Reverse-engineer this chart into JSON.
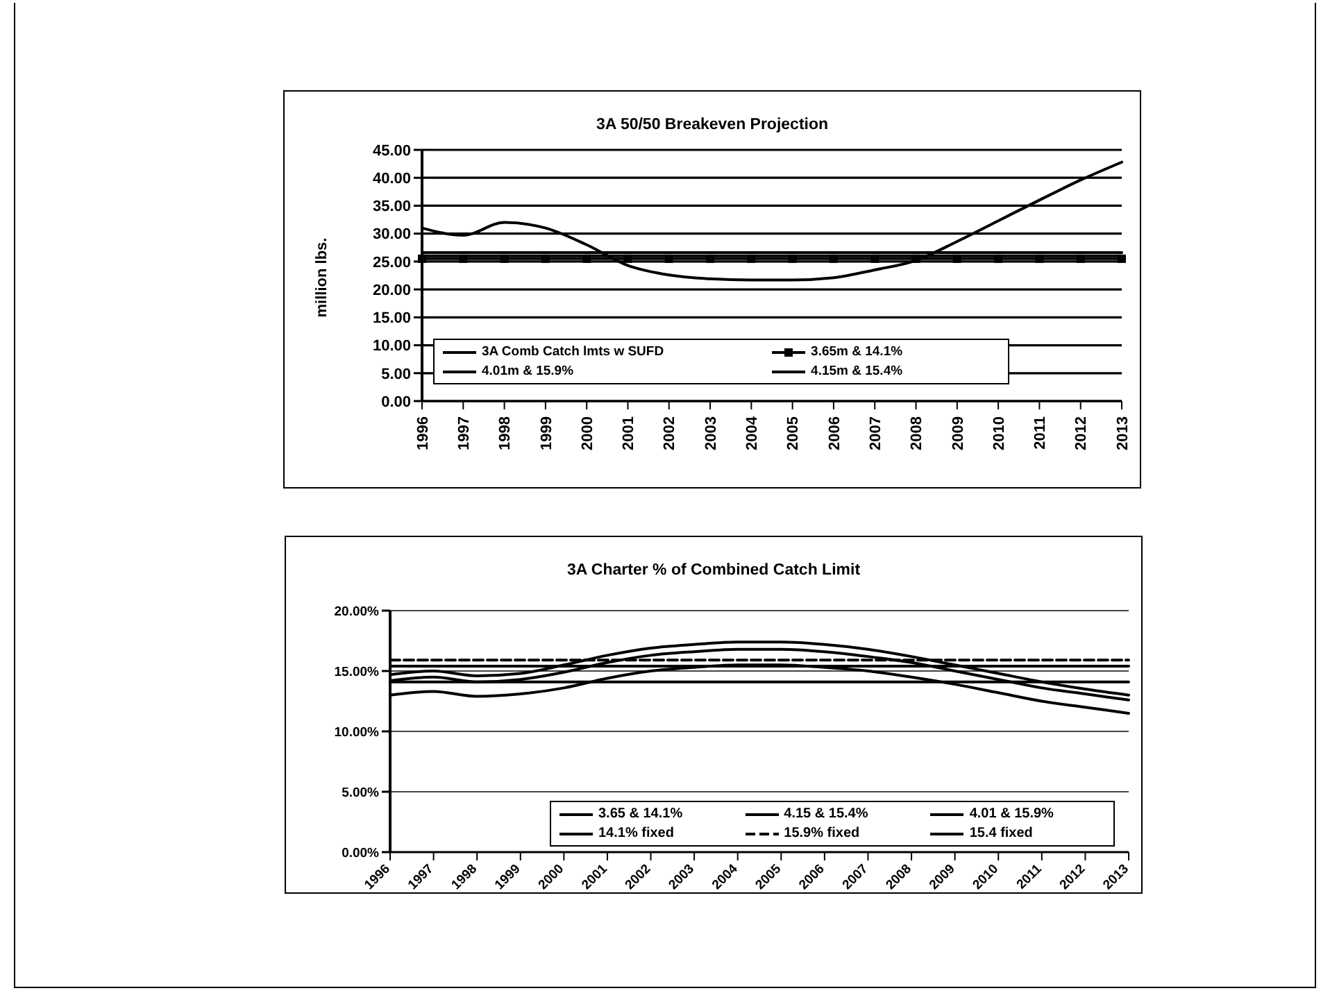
{
  "chart_data": [
    {
      "type": "line",
      "title": "3A 50/50 Breakeven Projection",
      "ylabel": "million lbs.",
      "categories": [
        "1996",
        "1997",
        "1998",
        "1999",
        "2000",
        "2001",
        "2002",
        "2003",
        "2004",
        "2005",
        "2006",
        "2007",
        "2008",
        "2009",
        "2010",
        "2011",
        "2012",
        "2013"
      ],
      "series": [
        {
          "name": "3A Comb Catch lmts w SUFD",
          "color": "#000000",
          "values": [
            31,
            29.7,
            32,
            31,
            28,
            24.3,
            22.6,
            21.9,
            21.7,
            21.7,
            22.1,
            23.5,
            25.2,
            28.6,
            32.3,
            36,
            39.6,
            42.8
          ]
        },
        {
          "name": "3.65m & 14.1%",
          "color": "#000000",
          "marker": "square",
          "values": [
            25.5,
            25.5,
            25.5,
            25.5,
            25.5,
            25.5,
            25.5,
            25.5,
            25.5,
            25.5,
            25.5,
            25.5,
            25.5,
            25.5,
            25.5,
            25.5,
            25.5,
            25.5
          ]
        },
        {
          "name": "4.01m & 15.9%",
          "color": "#000000",
          "values": [
            26,
            26,
            26,
            26,
            26,
            26,
            26,
            26,
            26,
            26,
            26,
            26,
            26,
            26,
            26,
            26,
            26,
            26
          ]
        },
        {
          "name": "4.15m & 15.4%",
          "color": "#000000",
          "values": [
            26.6,
            26.6,
            26.6,
            26.6,
            26.6,
            26.6,
            26.6,
            26.6,
            26.6,
            26.6,
            26.6,
            26.6,
            26.6,
            26.6,
            26.6,
            26.6,
            26.6,
            26.6
          ]
        }
      ],
      "ylim": [
        0,
        45
      ],
      "yticks": [
        {
          "value": 0,
          "label": "0.00"
        },
        {
          "value": 5,
          "label": "5.00"
        },
        {
          "value": 10,
          "label": "10.00"
        },
        {
          "value": 15,
          "label": "15.00"
        },
        {
          "value": 20,
          "label": "20.00"
        },
        {
          "value": 25,
          "label": "25.00"
        },
        {
          "value": 30,
          "label": "30.00"
        },
        {
          "value": 35,
          "label": "35.00"
        },
        {
          "value": 40,
          "label": "40.00"
        },
        {
          "value": 45,
          "label": "45.00"
        }
      ],
      "grid": "y",
      "legend": "bottom left"
    },
    {
      "type": "line",
      "title": "3A Charter % of Combined Catch Limit",
      "categories": [
        "1996",
        "1997",
        "1998",
        "1999",
        "2000",
        "2001",
        "2002",
        "2003",
        "2004",
        "2005",
        "2006",
        "2007",
        "2008",
        "2009",
        "2010",
        "2011",
        "2012",
        "2013"
      ],
      "series": [
        {
          "name": "3.65 & 14.1%",
          "color": "#000000",
          "values": [
            13,
            13.3,
            12.9,
            13.1,
            13.6,
            14.4,
            15,
            15.3,
            15.5,
            15.5,
            15.3,
            15,
            14.5,
            13.9,
            13.2,
            12.5,
            12,
            11.5
          ]
        },
        {
          "name": "4.15 & 15.4%",
          "color": "#000000",
          "values": [
            14.2,
            14.5,
            14.1,
            14.3,
            14.9,
            15.7,
            16.3,
            16.6,
            16.8,
            16.8,
            16.6,
            16.2,
            15.7,
            15,
            14.3,
            13.6,
            13.1,
            12.6
          ]
        },
        {
          "name": "4.01 & 15.9%",
          "color": "#000000",
          "values": [
            14.7,
            15,
            14.6,
            14.8,
            15.5,
            16.3,
            16.9,
            17.2,
            17.4,
            17.4,
            17.2,
            16.8,
            16.2,
            15.5,
            14.8,
            14.1,
            13.5,
            13
          ]
        },
        {
          "name": "14.1% fixed",
          "color": "#000000",
          "values": [
            14.1,
            14.1,
            14.1,
            14.1,
            14.1,
            14.1,
            14.1,
            14.1,
            14.1,
            14.1,
            14.1,
            14.1,
            14.1,
            14.1,
            14.1,
            14.1,
            14.1,
            14.1
          ]
        },
        {
          "name": "15.9% fixed",
          "color": "#000000",
          "line_style": "dashed",
          "values": [
            15.9,
            15.9,
            15.9,
            15.9,
            15.9,
            15.9,
            15.9,
            15.9,
            15.9,
            15.9,
            15.9,
            15.9,
            15.9,
            15.9,
            15.9,
            15.9,
            15.9,
            15.9
          ]
        },
        {
          "name": "15.4 fixed",
          "color": "#000000",
          "values": [
            15.4,
            15.4,
            15.4,
            15.4,
            15.4,
            15.4,
            15.4,
            15.4,
            15.4,
            15.4,
            15.4,
            15.4,
            15.4,
            15.4,
            15.4,
            15.4,
            15.4,
            15.4
          ]
        }
      ],
      "ylim": [
        0,
        20
      ],
      "yticks": [
        {
          "value": 0,
          "label": "0.00%"
        },
        {
          "value": 5,
          "label": "5.00%"
        },
        {
          "value": 10,
          "label": "10.00%"
        },
        {
          "value": 15,
          "label": "15.00%"
        },
        {
          "value": 20,
          "label": "20.00%"
        }
      ],
      "grid": "y",
      "legend": "bottom right"
    }
  ]
}
